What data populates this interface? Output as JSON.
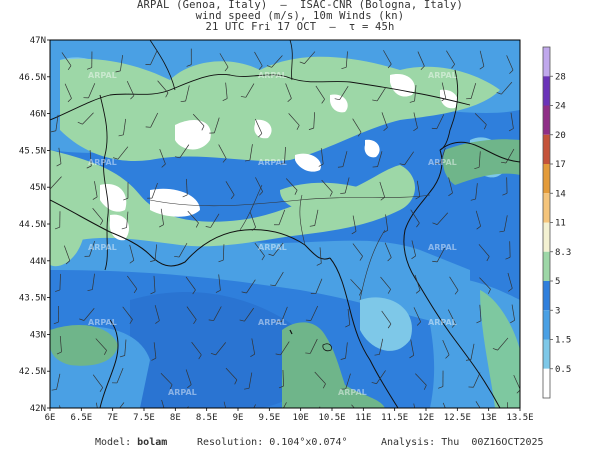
{
  "header": {
    "line1": "ARPAL (Genoa, Italy)  —  ISAC-CNR (Bologna, Italy)",
    "line2": "wind speed (m/s), 10m Winds (kn)",
    "line3": "21 UTC Fri 17 OCT  —  τ = 45h"
  },
  "watermark": "ARPAL",
  "axes": {
    "lat_labels": [
      "47N",
      "46.5N",
      "46N",
      "45.5N",
      "45N",
      "44.5N",
      "44N",
      "43.5N",
      "43N",
      "42.5N",
      "42N"
    ],
    "lon_labels": [
      "6E",
      "6.5E",
      "7E",
      "7.5E",
      "8E",
      "8.5E",
      "9E",
      "9.5E",
      "10E",
      "10.5E",
      "11E",
      "11.5E",
      "12E",
      "12.5E",
      "13E",
      "13.5E"
    ]
  },
  "colorbar": {
    "labels": [
      "0.5",
      "1.5",
      "3",
      "5",
      "8.3",
      "11",
      "14",
      "17",
      "20",
      "24",
      "28"
    ],
    "colors": [
      "#ffffff",
      "#7ec8e8",
      "#4aa0e4",
      "#2f7fdc",
      "#9dd7a7",
      "#f3f1d2",
      "#f4c47b",
      "#e39b3a",
      "#c4533a",
      "#8f2f87",
      "#6a33b8",
      "#c0a8ec"
    ]
  },
  "footer": {
    "model_label": "Model:",
    "model_value": "bolam",
    "resolution_label": "Resolution:",
    "resolution_value": "0.104°x0.074°",
    "analysis_label": "Analysis:",
    "analysis_value": "Thu  00Z16OCT2025"
  }
}
